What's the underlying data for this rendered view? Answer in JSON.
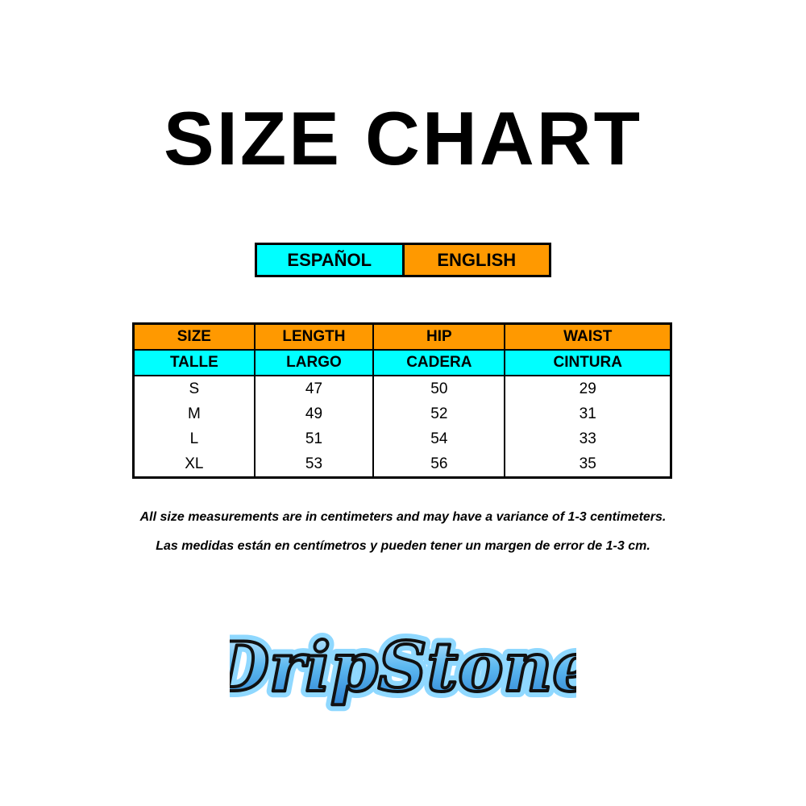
{
  "title": "SIZE CHART",
  "language_toggle": {
    "spanish": "ESPAÑOL",
    "english": "ENGLISH"
  },
  "colors": {
    "cyan": "#00ffff",
    "orange": "#ff9900",
    "logo_blue": "#3aa6e8"
  },
  "table": {
    "header_en": [
      "SIZE",
      "LENGTH",
      "HIP",
      "WAIST"
    ],
    "header_es": [
      "TALLE",
      "LARGO",
      "CADERA",
      "CINTURA"
    ],
    "rows": [
      [
        "S",
        "47",
        "50",
        "29"
      ],
      [
        "M",
        "49",
        "52",
        "31"
      ],
      [
        "L",
        "51",
        "54",
        "33"
      ],
      [
        "XL",
        "53",
        "56",
        "35"
      ]
    ]
  },
  "notes": {
    "en": "All size measurements are in centimeters and may have a variance of 1-3 centimeters.",
    "es": "Las medidas están en centímetros y pueden tener un margen de error de 1-3 cm."
  },
  "logo": {
    "text": "DripStone"
  }
}
